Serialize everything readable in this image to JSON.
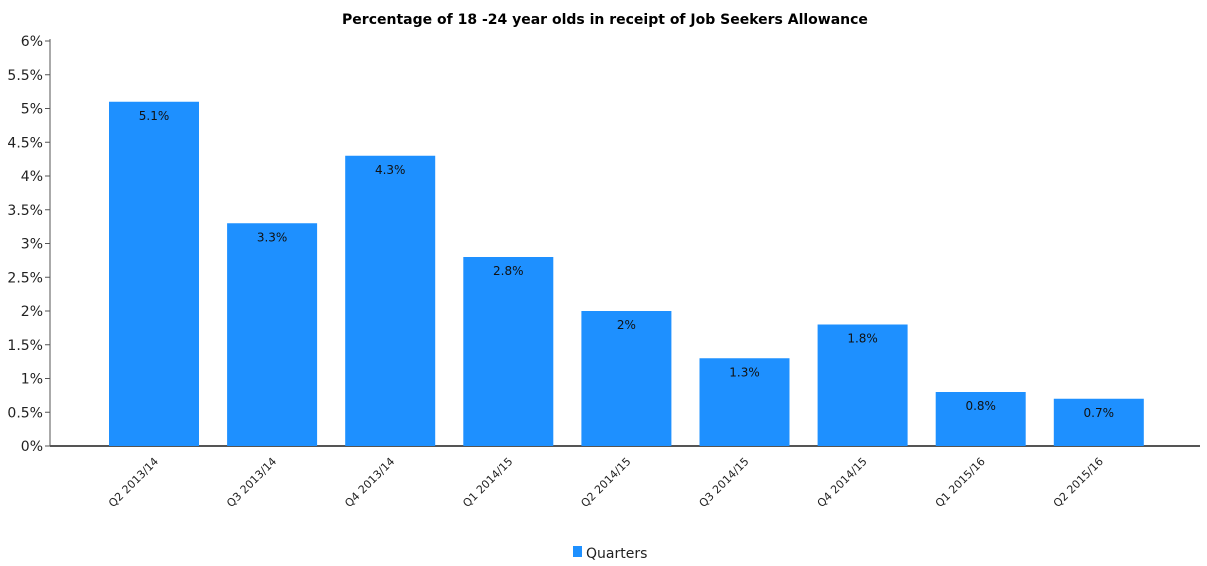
{
  "chart_data": {
    "type": "bar",
    "title": "Percentage of 18 -24 year olds in receipt of Job Seekers Allowance",
    "xlabel": "",
    "ylabel": "",
    "categories": [
      "Q2 2013/14",
      "Q3 2013/14",
      "Q4 2013/14",
      "Q1 2014/15",
      "Q2 2014/15",
      "Q3 2014/15",
      "Q4 2014/15",
      "Q1 2015/16",
      "Q2 2015/16"
    ],
    "series": [
      {
        "name": "Quarters",
        "values": [
          5.1,
          3.3,
          4.3,
          2.8,
          2.0,
          1.3,
          1.8,
          0.8,
          0.7
        ]
      }
    ],
    "data_labels": [
      "5.1%",
      "3.3%",
      "4.3%",
      "2.8%",
      "2%",
      "1.3%",
      "1.8%",
      "0.8%",
      "0.7%"
    ],
    "ylim": [
      0,
      6
    ],
    "yticks": [
      0,
      0.5,
      1,
      1.5,
      2,
      2.5,
      3,
      3.5,
      4,
      4.5,
      5,
      5.5,
      6
    ],
    "ytick_labels": [
      "0%",
      "0.5%",
      "1%",
      "1.5%",
      "2%",
      "2.5%",
      "3%",
      "3.5%",
      "4%",
      "4.5%",
      "5%",
      "5.5%",
      "6%"
    ],
    "grid": false,
    "legend_position": "bottom-center",
    "colors": {
      "bar": "#1e90ff",
      "axis": "#555555"
    }
  }
}
